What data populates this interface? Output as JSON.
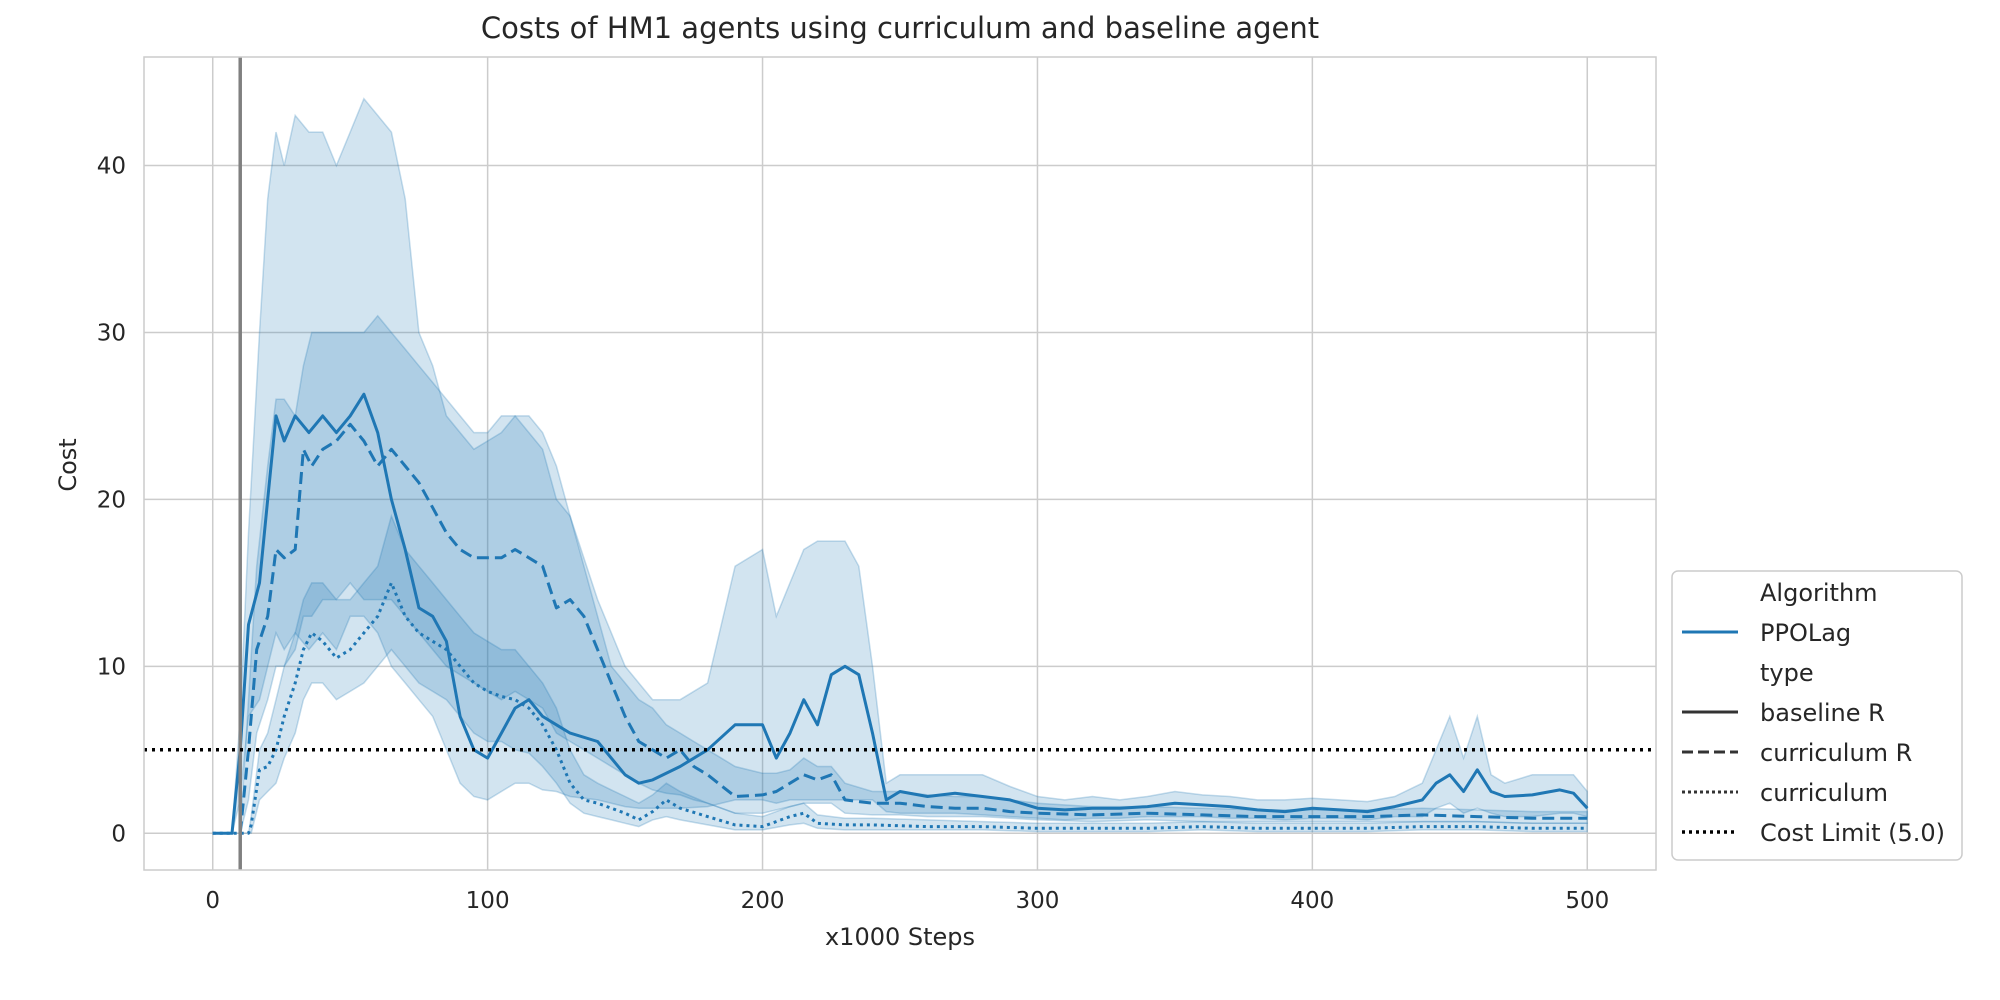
{
  "chart_data": {
    "type": "line",
    "title": "Costs of HM1 agents using curriculum and baseline agent",
    "xlabel": "x1000 Steps",
    "ylabel": "Cost",
    "xlim": [
      -25,
      525
    ],
    "ylim": [
      -2.2,
      46.5
    ],
    "xticks": [
      0,
      100,
      200,
      300,
      400,
      500
    ],
    "yticks": [
      0,
      10,
      20,
      30,
      40
    ],
    "grid": true,
    "legend": {
      "placement": "lower right, outside plot",
      "groups": [
        {
          "title": "Algorithm",
          "entries": [
            {
              "label": "PPOLag",
              "style": "solid",
              "color": "#1f77b4"
            }
          ]
        },
        {
          "title": "type",
          "entries": [
            {
              "label": "baseline R",
              "style": "solid",
              "color": "#333333"
            },
            {
              "label": "curriculum R",
              "style": "dashed",
              "color": "#333333"
            },
            {
              "label": "curriculum",
              "style": "dotted",
              "color": "#333333"
            },
            {
              "label": "Cost Limit (5.0)",
              "style": "dotted",
              "color": "#000000"
            }
          ]
        }
      ]
    },
    "annotations": {
      "vertical_line_x": 10,
      "cost_limit": 5.0
    },
    "colors": {
      "series": "#1f77b4",
      "band": "#1f77b4",
      "vertical_line": "#808080",
      "cost_limit": "#000000",
      "grid": "#cccccc"
    },
    "series": [
      {
        "type_label": "baseline R",
        "style": "solid",
        "x": [
          0,
          7,
          10,
          13,
          17,
          20,
          23,
          26,
          30,
          35,
          40,
          45,
          50,
          55,
          60,
          65,
          70,
          75,
          80,
          85,
          90,
          95,
          100,
          105,
          110,
          115,
          120,
          125,
          130,
          140,
          150,
          155,
          160,
          170,
          180,
          190,
          200,
          205,
          210,
          215,
          220,
          225,
          230,
          235,
          240,
          245,
          250,
          260,
          270,
          280,
          290,
          300,
          310,
          320,
          330,
          340,
          350,
          360,
          370,
          380,
          390,
          400,
          410,
          420,
          430,
          440,
          445,
          450,
          455,
          460,
          465,
          470,
          480,
          490,
          495,
          500
        ],
        "y": [
          0,
          0,
          5,
          12.5,
          15,
          20,
          25,
          23.5,
          25,
          24,
          25,
          24,
          25,
          26.3,
          24,
          20,
          17,
          13.5,
          13,
          11.5,
          7,
          5,
          4.5,
          6,
          7.5,
          8,
          7,
          6.5,
          6,
          5.5,
          3.5,
          3,
          3.2,
          4,
          5,
          6.5,
          6.5,
          4.5,
          6,
          8,
          6.5,
          9.5,
          10,
          9.5,
          6,
          2,
          2.5,
          2.2,
          2.4,
          2.2,
          2,
          1.5,
          1.4,
          1.5,
          1.5,
          1.6,
          1.8,
          1.7,
          1.6,
          1.4,
          1.3,
          1.5,
          1.4,
          1.3,
          1.6,
          2,
          3,
          3.5,
          2.5,
          3.8,
          2.5,
          2.2,
          2.3,
          2.6,
          2.4,
          1.5
        ],
        "upper": [
          0,
          0,
          7,
          18,
          30,
          38,
          42,
          40,
          43,
          42,
          42,
          40,
          42,
          44,
          43,
          42,
          38,
          30,
          28,
          25,
          24,
          23,
          23.5,
          24,
          25,
          25,
          24,
          22,
          19,
          14,
          10,
          9,
          8,
          8,
          9,
          16,
          17,
          13,
          15,
          17,
          17.5,
          17.5,
          17.5,
          16,
          10,
          3,
          3.5,
          3.5,
          3.5,
          3.5,
          2.8,
          2.2,
          2,
          2.2,
          2,
          2.2,
          2.5,
          2.3,
          2.2,
          2,
          2,
          2.1,
          2,
          1.9,
          2.2,
          3,
          5,
          7,
          4.5,
          7,
          3.5,
          3,
          3.5,
          3.5,
          3.5,
          2.5
        ],
        "lower": [
          0,
          0,
          2,
          7,
          8,
          10,
          12,
          11,
          12,
          11,
          12,
          11,
          13,
          13,
          12,
          10,
          9,
          8,
          7,
          5,
          3,
          2.2,
          2,
          2.5,
          3,
          3,
          2.6,
          2.5,
          2.2,
          2,
          1.6,
          1.5,
          1.5,
          1.5,
          1.6,
          2,
          2,
          1.8,
          2,
          2,
          2,
          2,
          2,
          2,
          2,
          1.3,
          1.2,
          1.2,
          1.2,
          1.1,
          1,
          0.9,
          0.8,
          0.9,
          0.9,
          1,
          1,
          1,
          0.9,
          0.9,
          0.8,
          0.9,
          0.9,
          0.8,
          1,
          1,
          1.5,
          1.8,
          1.2,
          1.5,
          1.2,
          1,
          1,
          1.2,
          1.2,
          1
        ]
      },
      {
        "type_label": "curriculum R",
        "style": "dashed",
        "x": [
          10,
          13,
          16,
          20,
          23,
          26,
          30,
          33,
          36,
          40,
          45,
          50,
          55,
          60,
          65,
          70,
          75,
          80,
          85,
          90,
          95,
          100,
          105,
          110,
          115,
          120,
          125,
          130,
          135,
          140,
          145,
          150,
          155,
          160,
          165,
          170,
          175,
          180,
          190,
          200,
          205,
          210,
          215,
          220,
          225,
          230,
          240,
          250,
          260,
          270,
          280,
          290,
          300,
          320,
          340,
          360,
          380,
          400,
          420,
          440,
          460,
          480,
          500
        ],
        "y": [
          0,
          5,
          11,
          13,
          17,
          16.5,
          17,
          23,
          22,
          23,
          23.5,
          24.5,
          23.5,
          22,
          23,
          22,
          21,
          19.5,
          18,
          17,
          16.5,
          16.5,
          16.5,
          17,
          16.5,
          16,
          13.5,
          14,
          13,
          11,
          9,
          7,
          5.5,
          5,
          4.5,
          5,
          4,
          3.5,
          2.2,
          2.3,
          2.5,
          3,
          3.5,
          3.2,
          3.5,
          2,
          1.8,
          1.8,
          1.6,
          1.5,
          1.5,
          1.3,
          1.2,
          1.1,
          1.2,
          1.1,
          1,
          1,
          1,
          1.1,
          1,
          0.9,
          0.9
        ],
        "upper": [
          0,
          8,
          16,
          22,
          26,
          26,
          25,
          28,
          30,
          30,
          30,
          30,
          30,
          31,
          30,
          29,
          28,
          27,
          26,
          25,
          24,
          24,
          25,
          25,
          24,
          23,
          20,
          19,
          16,
          13,
          10,
          9,
          8,
          7.5,
          6.5,
          6,
          5.5,
          5,
          4,
          3.6,
          3.6,
          3.8,
          4.5,
          4,
          4,
          3,
          2.5,
          2.5,
          2.3,
          2.2,
          2.2,
          2,
          1.8,
          1.6,
          1.6,
          1.5,
          1.4,
          1.4,
          1.4,
          1.5,
          1.4,
          1.3,
          1.3
        ],
        "lower": [
          0,
          2,
          6,
          8,
          10,
          10,
          11,
          13,
          13,
          14,
          14,
          15,
          14,
          14,
          14,
          13,
          12,
          11,
          10,
          9.5,
          9,
          8.5,
          8,
          8.5,
          8,
          7.5,
          6,
          5.5,
          5,
          4.5,
          4,
          3.5,
          3,
          2.6,
          2.4,
          2.3,
          2,
          1.8,
          1.2,
          1.2,
          1.4,
          1.6,
          1.8,
          1.8,
          1.8,
          1.2,
          1.1,
          1.1,
          1,
          1,
          1,
          0.9,
          0.8,
          0.7,
          0.8,
          0.7,
          0.7,
          0.7,
          0.7,
          0.7,
          0.7,
          0.6,
          0.6
        ]
      },
      {
        "type_label": "curriculum",
        "style": "dotted",
        "x": [
          0,
          13,
          14,
          17,
          20,
          23,
          26,
          30,
          33,
          36,
          40,
          45,
          50,
          55,
          60,
          65,
          70,
          75,
          80,
          85,
          90,
          95,
          100,
          105,
          110,
          115,
          120,
          125,
          130,
          135,
          140,
          145,
          150,
          155,
          160,
          165,
          170,
          180,
          190,
          200,
          210,
          215,
          220,
          230,
          240,
          260,
          280,
          300,
          320,
          340,
          360,
          380,
          400,
          420,
          440,
          460,
          480,
          500
        ],
        "y": [
          0,
          0,
          0.5,
          3.8,
          4,
          5,
          7,
          9,
          11,
          12,
          11.5,
          10.5,
          11,
          12,
          13,
          15,
          13,
          12,
          11.5,
          11,
          10,
          9,
          8.5,
          8.2,
          8,
          7.5,
          6.5,
          5,
          3,
          2,
          1.8,
          1.5,
          1.2,
          0.8,
          1.3,
          2,
          1.5,
          1,
          0.5,
          0.4,
          1,
          1.2,
          0.6,
          0.5,
          0.5,
          0.4,
          0.4,
          0.3,
          0.3,
          0.3,
          0.4,
          0.3,
          0.3,
          0.3,
          0.4,
          0.4,
          0.3,
          0.3
        ],
        "upper": [
          0,
          0,
          1,
          5,
          6,
          8,
          10,
          12,
          14,
          15,
          15,
          14,
          14,
          15,
          16,
          19,
          17,
          16,
          15,
          14,
          13,
          12,
          11.5,
          11,
          11,
          10,
          9,
          7.5,
          5,
          3.5,
          3,
          2.6,
          2.2,
          1.8,
          2.3,
          3,
          2.5,
          1.8,
          1.2,
          1,
          1.6,
          1.8,
          1.1,
          0.9,
          0.9,
          0.8,
          0.7,
          0.6,
          0.6,
          0.6,
          0.7,
          0.6,
          0.6,
          0.6,
          0.7,
          0.7,
          0.6,
          0.6
        ],
        "lower": [
          0,
          0,
          0,
          2,
          2.5,
          3,
          4.5,
          6,
          8,
          9,
          9,
          8,
          8.5,
          9,
          10,
          11,
          10,
          9,
          8.5,
          8,
          7,
          6,
          5.5,
          5.5,
          5,
          4.8,
          4,
          3,
          1.8,
          1.2,
          1,
          0.8,
          0.6,
          0.4,
          0.8,
          1,
          0.8,
          0.5,
          0.2,
          0.2,
          0.5,
          0.6,
          0.3,
          0.2,
          0.2,
          0.2,
          0.2,
          0.1,
          0.1,
          0.1,
          0.2,
          0.1,
          0.1,
          0.1,
          0.2,
          0.2,
          0.1,
          0.1
        ]
      }
    ]
  }
}
